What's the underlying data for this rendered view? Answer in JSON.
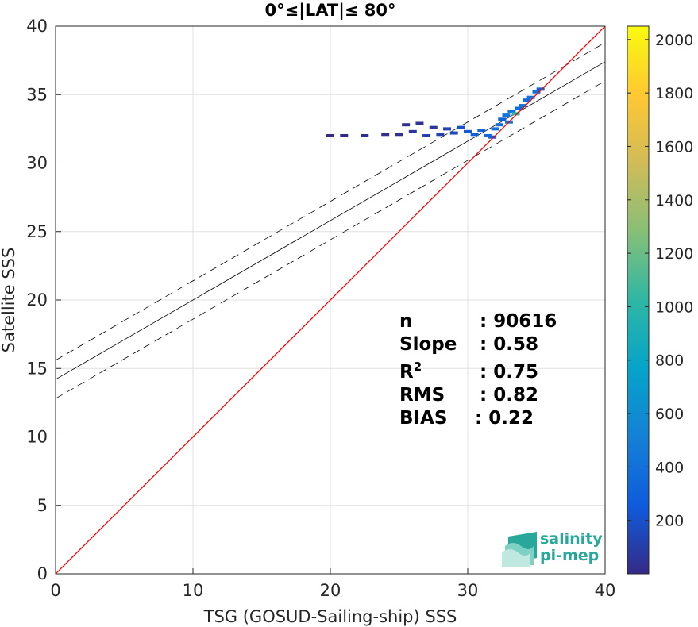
{
  "chart_data": {
    "type": "scatter",
    "title": "0°≤|LAT|≤ 80°",
    "xlabel": "TSG (GOSUD-Sailing-ship) SSS",
    "ylabel": "Satellite SSS",
    "xlim": [
      0,
      40
    ],
    "ylim": [
      0,
      40
    ],
    "xticks": [
      "0",
      "10",
      "20",
      "30",
      "40"
    ],
    "yticks": [
      "0",
      "5",
      "10",
      "15",
      "20",
      "25",
      "30",
      "35",
      "40"
    ],
    "grid": true,
    "density_points": [
      {
        "x": 20.0,
        "y": 32.0,
        "count": 5
      },
      {
        "x": 21.0,
        "y": 32.0,
        "count": 5
      },
      {
        "x": 22.5,
        "y": 32.0,
        "count": 20
      },
      {
        "x": 24.0,
        "y": 32.1,
        "count": 20
      },
      {
        "x": 25.0,
        "y": 32.1,
        "count": 30
      },
      {
        "x": 25.5,
        "y": 32.8,
        "count": 30
      },
      {
        "x": 26.0,
        "y": 32.3,
        "count": 60
      },
      {
        "x": 26.5,
        "y": 32.9,
        "count": 40
      },
      {
        "x": 27.0,
        "y": 32.0,
        "count": 100
      },
      {
        "x": 27.5,
        "y": 32.6,
        "count": 60
      },
      {
        "x": 28.0,
        "y": 32.1,
        "count": 120
      },
      {
        "x": 28.5,
        "y": 32.5,
        "count": 120
      },
      {
        "x": 29.0,
        "y": 32.2,
        "count": 160
      },
      {
        "x": 29.5,
        "y": 32.6,
        "count": 200
      },
      {
        "x": 30.0,
        "y": 32.3,
        "count": 240
      },
      {
        "x": 30.5,
        "y": 32.1,
        "count": 280
      },
      {
        "x": 31.0,
        "y": 32.4,
        "count": 320
      },
      {
        "x": 31.5,
        "y": 32.0,
        "count": 360
      },
      {
        "x": 31.8,
        "y": 31.9,
        "count": 300
      },
      {
        "x": 32.0,
        "y": 32.5,
        "count": 400
      },
      {
        "x": 32.3,
        "y": 32.8,
        "count": 380
      },
      {
        "x": 32.5,
        "y": 33.2,
        "count": 300
      },
      {
        "x": 32.8,
        "y": 33.5,
        "count": 420
      },
      {
        "x": 33.0,
        "y": 33.0,
        "count": 450
      },
      {
        "x": 33.2,
        "y": 33.8,
        "count": 420
      },
      {
        "x": 33.5,
        "y": 33.6,
        "count": 1000
      },
      {
        "x": 33.7,
        "y": 34.0,
        "count": 350
      },
      {
        "x": 34.0,
        "y": 34.2,
        "count": 420
      },
      {
        "x": 34.3,
        "y": 34.6,
        "count": 380
      },
      {
        "x": 34.6,
        "y": 34.8,
        "count": 420
      },
      {
        "x": 35.0,
        "y": 35.2,
        "count": 380
      },
      {
        "x": 35.3,
        "y": 35.4,
        "count": 300
      }
    ],
    "one_to_one_line": {
      "color": "#ff0000",
      "from": [
        0,
        0
      ],
      "to": [
        40,
        40
      ]
    },
    "regression": {
      "slope": 0.58,
      "intercept": 14.2
    },
    "confidence_offset": 1.4,
    "stats": [
      {
        "label": "n",
        "value": ": 90616"
      },
      {
        "label": "Slope",
        "value": ": 0.58"
      },
      {
        "label": "R",
        "sup": "2",
        "value": ": 0.75"
      },
      {
        "label": "RMS",
        "value": ": 0.82"
      },
      {
        "label": "BIAS",
        "value": ": 0.22"
      }
    ],
    "colorbar": {
      "colormap": "parula",
      "range": [
        0,
        2050
      ],
      "ticks": [
        "200",
        "400",
        "600",
        "800",
        "1000",
        "1200",
        "1400",
        "1600",
        "1800",
        "2000"
      ]
    }
  },
  "logo": {
    "line1": "salinity",
    "line2": "pi-mep"
  },
  "colors": {
    "one_to_one": "#ff0000",
    "regression": "#000000",
    "grid": "#e0e0e0"
  }
}
